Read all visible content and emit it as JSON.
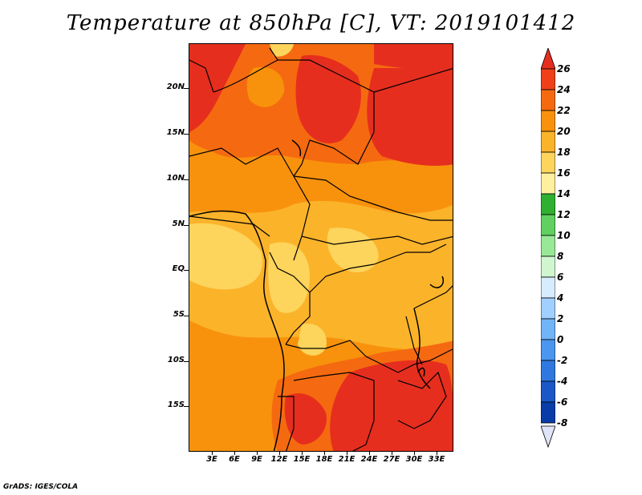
{
  "title": "Temperature at 850hPa [C], VT: 2019101412",
  "credit": "GrADS: IGES/COLA",
  "map": {
    "y_axis_labels": [
      "20N",
      "15N",
      "10N",
      "5N",
      "EQ",
      "5S",
      "10S",
      "15S"
    ],
    "x_axis_labels": [
      "3E",
      "6E",
      "9E",
      "12E",
      "15E",
      "18E",
      "21E",
      "24E",
      "27E",
      "30E",
      "33E"
    ]
  },
  "colorbar": {
    "labels": [
      "26",
      "24",
      "22",
      "20",
      "18",
      "16",
      "14",
      "12",
      "10",
      "8",
      "6",
      "4",
      "2",
      "0",
      "-2",
      "-4",
      "-6",
      "-8"
    ],
    "colors": {
      "top_arrow": "#e62e1e",
      "c24_26": "#f0401a",
      "c22_24": "#f56a10",
      "c20_22": "#f8920c",
      "c18_20": "#fbb32a",
      "c16_18": "#fdd45c",
      "c14_16": "#fff0a0",
      "c12_14": "#30b030",
      "c10_12": "#60d060",
      "c8_10": "#98e898",
      "c6_8": "#d0f6d0",
      "c4_6": "#d8ecff",
      "c2_4": "#a0d0ff",
      "c0_2": "#72b4f8",
      "cm2_0": "#4a96f0",
      "cm4_m2": "#3078e0",
      "cm6_m4": "#1a58c8",
      "cm8_m6": "#0a3ca8",
      "bottom": "#02106a",
      "bottom_arrow": "#e0e4f8"
    }
  }
}
